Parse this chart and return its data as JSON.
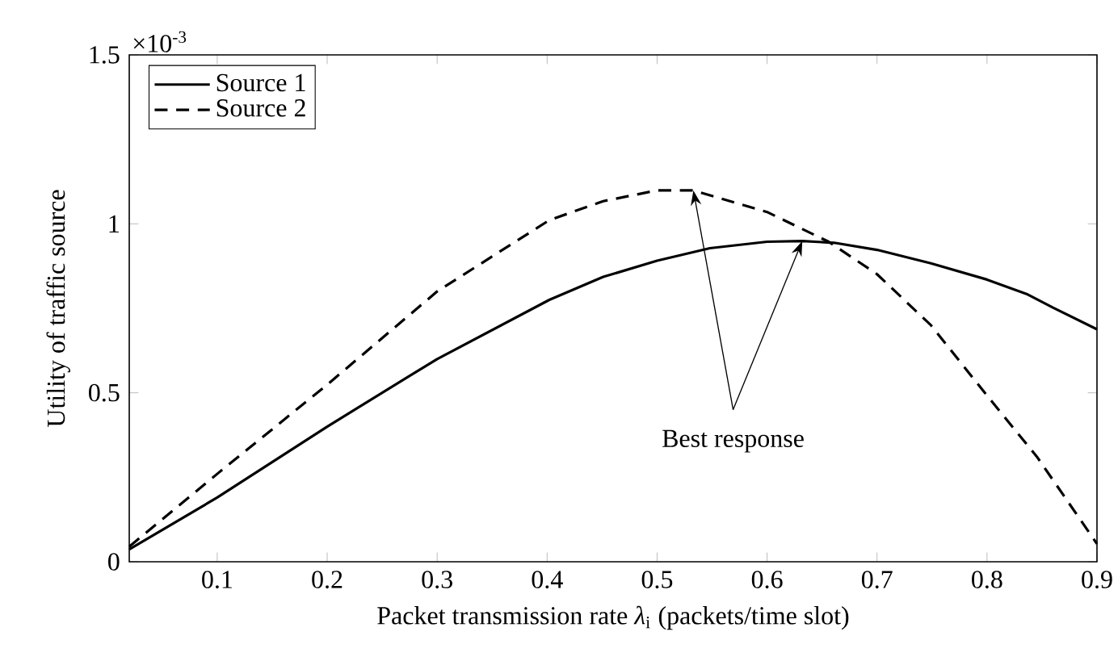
{
  "chart_data": {
    "type": "line",
    "xlabel": "Packet transmission rate *λ*$_{i}$ (packets/time slot)",
    "ylabel": "Utility of traffic source",
    "xlim": [
      0.02,
      0.9
    ],
    "xticks": [
      0.1,
      0.2,
      0.3,
      0.4,
      0.5,
      0.6,
      0.7,
      0.8,
      0.9
    ],
    "ylim": [
      0,
      1.5
    ],
    "yticks": [
      0,
      0.5,
      1,
      1.5
    ],
    "grid": false,
    "legend": "top left",
    "annotations": [
      "×10$^{-3}$",
      {
        "text": "Best response",
        "x": 0.533,
        "y": 1.099
      }
    ],
    "series": [
      {
        "name": "Source 1",
        "color": "#000000",
        "line_style": "solid",
        "x": [
          0.02,
          0.1,
          0.2,
          0.3,
          0.402,
          0.451,
          0.5,
          0.548,
          0.6,
          0.632,
          0.661,
          0.7,
          0.749,
          0.8,
          0.837,
          0.86,
          0.9
        ],
        "values": [
          0.037,
          0.19,
          0.4,
          0.6,
          0.775,
          0.843,
          0.891,
          0.928,
          0.947,
          0.949,
          0.944,
          0.923,
          0.883,
          0.835,
          0.791,
          0.752,
          0.688
        ]
      },
      {
        "name": "Source 2",
        "color": "#000000",
        "line_style": "dashed",
        "x": [
          0.02,
          0.1,
          0.2,
          0.3,
          0.402,
          0.451,
          0.5,
          0.533,
          0.6,
          0.656,
          0.7,
          0.749,
          0.8,
          0.846,
          0.9
        ],
        "values": [
          0.045,
          0.26,
          0.524,
          0.8,
          1.011,
          1.067,
          1.099,
          1.099,
          1.035,
          0.947,
          0.851,
          0.7,
          0.492,
          0.308,
          0.053
        ]
      }
    ]
  }
}
